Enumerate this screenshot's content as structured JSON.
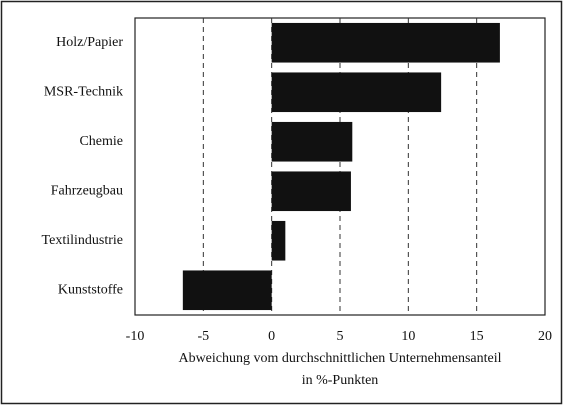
{
  "chart_data": {
    "type": "barh",
    "categories": [
      "Holz/Papier",
      "MSR-Technik",
      "Chemie",
      "Fahrzeugbau",
      "Textilindustrie",
      "Kunststoffe"
    ],
    "values": [
      16.7,
      12.4,
      5.9,
      5.8,
      1.0,
      -6.5
    ],
    "color": "#111111",
    "xlim": [
      -10,
      20
    ],
    "xticks": [
      -10,
      -5,
      0,
      5,
      10,
      15,
      20
    ],
    "grid": true,
    "xlabel": [
      "Abweichung vom durchschnittlichen Unternehmensanteil",
      "in %-Punkten"
    ]
  }
}
